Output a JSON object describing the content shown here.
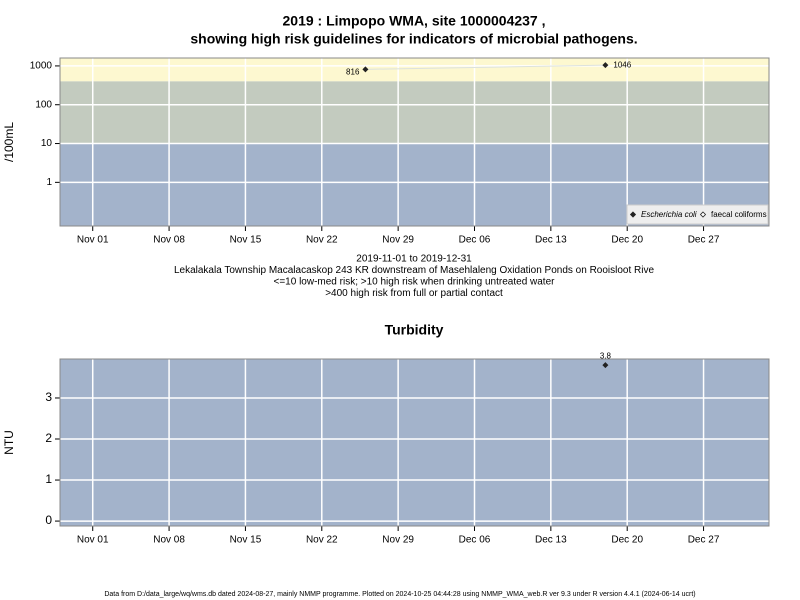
{
  "chart_data": [
    {
      "type": "line",
      "title": [
        "2019 : Limpopo WMA, site 1000004237 ,",
        "showing high risk guidelines for indicators of microbial pathogens."
      ],
      "y_label": "/100mL",
      "x": [
        "Nov 26",
        "Dec 18"
      ],
      "series": [
        {
          "name": "Escherichia coli",
          "color": "#222222",
          "values": [
            816,
            1046
          ]
        },
        {
          "name": "faecal coliforms",
          "color": "#222222",
          "values": [
            null,
            null
          ]
        }
      ],
      "log_y": true,
      "ylim": [
        0.075,
        1600
      ],
      "yticks": [
        1,
        10,
        100,
        1000
      ],
      "xlim": [
        "Oct 29",
        "Jan 02"
      ],
      "xticks": [
        "Nov 01",
        "Nov 08",
        "Nov 15",
        "Nov 22",
        "Nov 29",
        "Dec 06",
        "Dec 13",
        "Dec 20",
        "Dec 27"
      ],
      "bands": [
        {
          "from": 400,
          "to": 1600,
          "color": "#fdf8d0"
        },
        {
          "from": 10,
          "to": 400,
          "color": "#c3cbbf"
        },
        {
          "from": 0.075,
          "to": 10,
          "color": "#a3b3cb"
        }
      ],
      "grid": true,
      "legend": "bottom-right",
      "annotations": [
        "2019-11-01 to 2019-12-31",
        "Lekalakala Township Macalacaskop 243 KR downstream of Masehlaleng Oxidation Ponds on Rooisloot Rive",
        "<=10 low-med risk; >10 high risk when drinking untreated water",
        ">400 high risk from full or partial contact"
      ]
    },
    {
      "type": "scatter",
      "title": [
        "Turbidity"
      ],
      "y_label": "NTU",
      "x": [
        "Dec 18"
      ],
      "series": [
        {
          "name": "Turbidity",
          "color": "#222222",
          "values": [
            3.8
          ]
        }
      ],
      "log_y": false,
      "ylim": [
        -0.12,
        3.95
      ],
      "yticks": [
        0,
        1,
        2,
        3
      ],
      "xlim": [
        "Oct 29",
        "Jan 02"
      ],
      "xticks": [
        "Nov 01",
        "Nov 08",
        "Nov 15",
        "Nov 22",
        "Nov 29",
        "Dec 06",
        "Dec 13",
        "Dec 20",
        "Dec 27"
      ],
      "bands": [
        {
          "from": -0.12,
          "to": 3.95,
          "color": "#a3b3cb"
        }
      ],
      "grid": true
    }
  ],
  "footer": "Data from D:/data_large/wq/wms.db dated 2024-08-27, mainly NMMP programme. Plotted on 2024-10-25 04:44:28 using NMMP_WMA_web.R ver 9.3 under R version 4.4.1 (2024-06-14 ucrt)"
}
